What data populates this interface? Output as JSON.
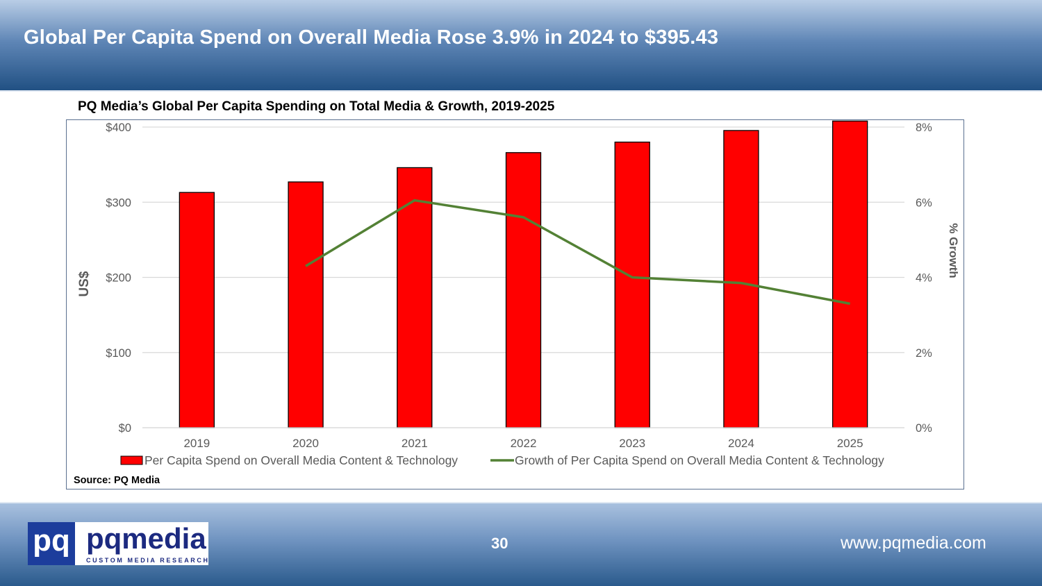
{
  "slide": {
    "title": "Global Per Capita Spend on Overall Media Rose 3.9% in 2024 to $395.43",
    "page_number": "30",
    "website": "www.pqmedia.com",
    "source": "Source: PQ Media"
  },
  "logo": {
    "mark": "pq",
    "word": "pqmedia",
    "tagline": "CUSTOM MEDIA RESEARCH"
  },
  "colors": {
    "bar": "#ff0000",
    "line": "#538135",
    "header": "#1f4f82"
  },
  "chart_data": {
    "type": "bar",
    "title": "PQ Media’s Global Per Capita Spending on Total Media & Growth, 2019-2025",
    "categories": [
      "2019",
      "2020",
      "2021",
      "2022",
      "2023",
      "2024",
      "2025"
    ],
    "ylabel": "US$",
    "y2label": "% Growth",
    "ylim": [
      0,
      400
    ],
    "y2lim": [
      0,
      8
    ],
    "yticks": [
      "$0",
      "$100",
      "$200",
      "$300",
      "$400"
    ],
    "y2ticks": [
      "0%",
      "2%",
      "4%",
      "6%",
      "8%"
    ],
    "grid": true,
    "legend_position": "bottom",
    "series": [
      {
        "name": "Per Capita Spend on Overall Media Content & Technology",
        "type": "bar",
        "axis": "left",
        "values": [
          313,
          327,
          346,
          366,
          380,
          395.43,
          408
        ]
      },
      {
        "name": "Growth of Per Capita Spend on Overall Media Content & Technology",
        "type": "line",
        "axis": "right",
        "values": [
          null,
          4.3,
          6.05,
          5.6,
          4.0,
          3.85,
          3.3
        ]
      }
    ]
  }
}
